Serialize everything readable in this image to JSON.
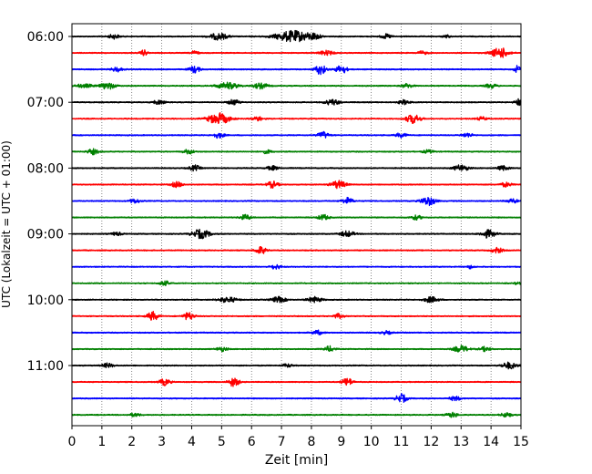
{
  "chart_data": {
    "type": "line",
    "title": "",
    "xlabel": "Zeit  [min]",
    "ylabel": "UTC (Lokalzeit = UTC + 01:00)",
    "xlim": [
      0,
      15
    ],
    "x_ticks": [
      0,
      1,
      2,
      3,
      4,
      5,
      6,
      7,
      8,
      9,
      10,
      11,
      12,
      13,
      14,
      15
    ],
    "y_tick_labels": [
      "06:00",
      "07:00",
      "08:00",
      "09:00",
      "10:00",
      "11:00"
    ],
    "grid": "vertical dotted at each minute",
    "trace_interval_minutes": 15,
    "trace_colors": [
      "#000000",
      "#ff0000",
      "#0000ff",
      "#008000"
    ],
    "traces": [
      {
        "start": "06:00",
        "color": "#000000",
        "events": [
          [
            1.4,
            0.4,
            0.3
          ],
          [
            4.9,
            0.6,
            0.5
          ],
          [
            7.4,
            1.0,
            1.0
          ],
          [
            8.1,
            0.4,
            0.3
          ],
          [
            10.5,
            0.4,
            0.3
          ],
          [
            12.5,
            0.3,
            0.2
          ]
        ]
      },
      {
        "start": "06:15",
        "color": "#ff0000",
        "events": [
          [
            2.4,
            0.5,
            0.2
          ],
          [
            4.1,
            0.4,
            0.2
          ],
          [
            8.5,
            0.4,
            0.4
          ],
          [
            11.7,
            0.3,
            0.3
          ],
          [
            14.3,
            0.9,
            0.5
          ]
        ]
      },
      {
        "start": "06:30",
        "color": "#0000ff",
        "events": [
          [
            1.5,
            0.4,
            0.3
          ],
          [
            4.1,
            0.6,
            0.3
          ],
          [
            8.3,
            0.9,
            0.3
          ],
          [
            9.0,
            0.8,
            0.3
          ],
          [
            14.9,
            0.7,
            0.2
          ]
        ]
      },
      {
        "start": "06:45",
        "color": "#008000",
        "events": [
          [
            0.4,
            0.3,
            0.5
          ],
          [
            1.2,
            0.6,
            0.4
          ],
          [
            5.2,
            0.6,
            0.6
          ],
          [
            6.3,
            0.5,
            0.4
          ],
          [
            11.2,
            0.4,
            0.3
          ],
          [
            14.0,
            0.4,
            0.3
          ]
        ]
      },
      {
        "start": "07:00",
        "color": "#000000",
        "events": [
          [
            2.9,
            0.4,
            0.3
          ],
          [
            5.4,
            0.5,
            0.3
          ],
          [
            8.7,
            0.5,
            0.4
          ],
          [
            11.1,
            0.4,
            0.3
          ],
          [
            14.9,
            0.6,
            0.2
          ]
        ]
      },
      {
        "start": "07:15",
        "color": "#ff0000",
        "events": [
          [
            4.9,
            1.0,
            0.6
          ],
          [
            6.2,
            0.4,
            0.3
          ],
          [
            11.4,
            0.8,
            0.4
          ],
          [
            13.7,
            0.3,
            0.3
          ]
        ]
      },
      {
        "start": "07:30",
        "color": "#0000ff",
        "events": [
          [
            4.9,
            0.5,
            0.3
          ],
          [
            8.4,
            0.6,
            0.3
          ],
          [
            11.0,
            0.4,
            0.3
          ],
          [
            13.2,
            0.4,
            0.3
          ]
        ]
      },
      {
        "start": "07:45",
        "color": "#008000",
        "events": [
          [
            0.7,
            0.5,
            0.3
          ],
          [
            3.9,
            0.4,
            0.3
          ],
          [
            6.5,
            0.3,
            0.3
          ],
          [
            11.9,
            0.3,
            0.3
          ]
        ]
      },
      {
        "start": "08:00",
        "color": "#000000",
        "events": [
          [
            4.1,
            0.5,
            0.3
          ],
          [
            6.7,
            0.4,
            0.3
          ],
          [
            13.0,
            0.6,
            0.4
          ],
          [
            14.4,
            0.4,
            0.3
          ]
        ]
      },
      {
        "start": "08:15",
        "color": "#ff0000",
        "events": [
          [
            3.5,
            0.5,
            0.3
          ],
          [
            6.7,
            0.6,
            0.3
          ],
          [
            8.9,
            0.7,
            0.4
          ],
          [
            14.5,
            0.4,
            0.3
          ]
        ]
      },
      {
        "start": "08:30",
        "color": "#0000ff",
        "events": [
          [
            2.1,
            0.4,
            0.3
          ],
          [
            9.2,
            0.6,
            0.3
          ],
          [
            11.9,
            0.8,
            0.4
          ],
          [
            14.7,
            0.4,
            0.3
          ]
        ]
      },
      {
        "start": "08:45",
        "color": "#008000",
        "events": [
          [
            5.8,
            0.5,
            0.3
          ],
          [
            8.4,
            0.5,
            0.3
          ],
          [
            11.5,
            0.4,
            0.3
          ]
        ]
      },
      {
        "start": "09:00",
        "color": "#000000",
        "events": [
          [
            1.5,
            0.3,
            0.3
          ],
          [
            4.3,
            0.8,
            0.5
          ],
          [
            9.2,
            0.5,
            0.4
          ],
          [
            13.9,
            0.7,
            0.4
          ]
        ]
      },
      {
        "start": "09:15",
        "color": "#ff0000",
        "events": [
          [
            6.3,
            0.7,
            0.3
          ],
          [
            14.2,
            0.5,
            0.3
          ]
        ]
      },
      {
        "start": "09:30",
        "color": "#0000ff",
        "events": [
          [
            6.8,
            0.4,
            0.3
          ],
          [
            13.3,
            0.3,
            0.2
          ]
        ]
      },
      {
        "start": "09:45",
        "color": "#008000",
        "events": [
          [
            3.1,
            0.4,
            0.3
          ],
          [
            14.9,
            0.2,
            0.2
          ]
        ]
      },
      {
        "start": "10:00",
        "color": "#000000",
        "events": [
          [
            5.2,
            0.5,
            0.5
          ],
          [
            6.9,
            0.5,
            0.4
          ],
          [
            8.1,
            0.5,
            0.4
          ],
          [
            12.0,
            0.5,
            0.4
          ]
        ]
      },
      {
        "start": "10:15",
        "color": "#ff0000",
        "events": [
          [
            2.7,
            0.8,
            0.3
          ],
          [
            3.9,
            0.7,
            0.3
          ],
          [
            8.9,
            0.4,
            0.3
          ]
        ]
      },
      {
        "start": "10:30",
        "color": "#0000ff",
        "events": [
          [
            8.2,
            0.4,
            0.3
          ],
          [
            10.5,
            0.3,
            0.3
          ]
        ]
      },
      {
        "start": "10:45",
        "color": "#008000",
        "events": [
          [
            5.0,
            0.4,
            0.3
          ],
          [
            8.6,
            0.5,
            0.3
          ],
          [
            13.0,
            0.6,
            0.4
          ],
          [
            13.8,
            0.4,
            0.3
          ]
        ]
      },
      {
        "start": "11:00",
        "color": "#000000",
        "events": [
          [
            1.2,
            0.4,
            0.3
          ],
          [
            7.2,
            0.3,
            0.3
          ],
          [
            14.6,
            0.6,
            0.4
          ]
        ]
      },
      {
        "start": "11:15",
        "color": "#ff0000",
        "events": [
          [
            3.1,
            0.6,
            0.3
          ],
          [
            5.4,
            0.8,
            0.3
          ],
          [
            9.2,
            0.7,
            0.3
          ]
        ]
      },
      {
        "start": "11:30",
        "color": "#0000ff",
        "events": [
          [
            11.0,
            0.8,
            0.3
          ],
          [
            12.8,
            0.4,
            0.3
          ]
        ]
      },
      {
        "start": "11:45",
        "color": "#008000",
        "events": [
          [
            2.1,
            0.3,
            0.3
          ],
          [
            12.7,
            0.5,
            0.3
          ],
          [
            14.5,
            0.4,
            0.3
          ]
        ]
      }
    ]
  }
}
